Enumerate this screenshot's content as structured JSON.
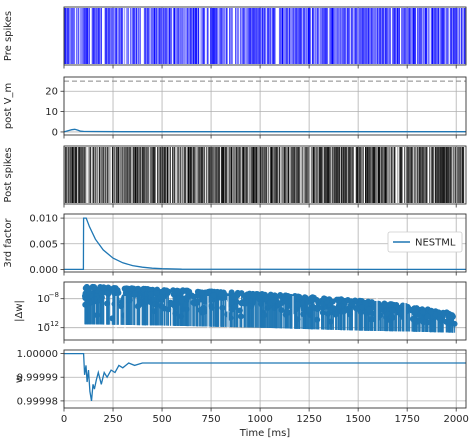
{
  "figure": {
    "xlabel": "Time [ms]",
    "xlim": [
      0,
      2050
    ],
    "xticks": [
      0,
      250,
      500,
      750,
      1000,
      1250,
      1500,
      1750,
      2000
    ],
    "xtick_labels": [
      "0",
      "250",
      "500",
      "750",
      "1000",
      "1250",
      "1500",
      "1750",
      "2000"
    ]
  },
  "chart_data": [
    {
      "type": "scatter",
      "subtype": "raster",
      "ylabel": "Pre spikes",
      "color": "#0000ff",
      "x_range": [
        0,
        2050
      ],
      "approx_spike_count": 900,
      "grid": true
    },
    {
      "type": "line",
      "ylabel": "post V_m",
      "yticks": [
        0,
        10,
        20
      ],
      "ylim": [
        -1.5,
        27
      ],
      "grid": true,
      "color": "#1f77b4",
      "threshold_line": {
        "y": 25,
        "style": "dashed",
        "color": "#888888"
      },
      "series": [
        {
          "x": [
            0,
            20,
            40,
            55,
            70,
            85,
            100,
            150,
            300,
            2050
          ],
          "y": [
            0,
            0.6,
            1.1,
            1.3,
            0.9,
            0.35,
            0.25,
            0.2,
            0.1,
            0.1
          ]
        }
      ]
    },
    {
      "type": "scatter",
      "subtype": "raster",
      "ylabel": "Post spikes",
      "color": "#000000",
      "x_range": [
        5,
        2040
      ],
      "approx_spike_count": 750,
      "grid": true
    },
    {
      "type": "line",
      "ylabel": "3rd factor",
      "yticks": [
        0.0,
        0.005,
        0.01
      ],
      "ytick_labels": [
        "0.000",
        "0.005",
        "0.010"
      ],
      "ylim": [
        -0.0005,
        0.0108
      ],
      "grid": true,
      "color": "#1f77b4",
      "legend": {
        "position": "right",
        "entries": [
          "NESTML"
        ]
      },
      "series": [
        {
          "x": [
            0,
            99,
            100,
            113,
            130,
            160,
            200,
            250,
            300,
            350,
            400,
            450,
            500,
            600,
            2050
          ],
          "y": [
            0,
            0,
            0.01,
            0.01,
            0.0083,
            0.0059,
            0.0038,
            0.0022,
            0.0013,
            0.00075,
            0.00043,
            0.00025,
            0.00014,
            5e-05,
            0
          ]
        }
      ]
    },
    {
      "type": "scatter",
      "ylabel": "|Δw|",
      "yscale": "log",
      "ytick_labels": [
        "10^−8",
        "10^−12"
      ],
      "yticks": [
        1e-08,
        1e-12
      ],
      "ylim": [
        2e-14,
        2e-06
      ],
      "grid": true,
      "color": "#1f77b4",
      "envelope": {
        "x": [
          100,
          500,
          1000,
          1500,
          1750,
          2000
        ],
        "upper": [
          5e-07,
          2e-07,
          5e-08,
          6e-09,
          1e-09,
          8e-11
        ],
        "lower": [
          3e-12,
          2e-12,
          1e-12,
          4e-13,
          3e-13,
          2e-13
        ]
      }
    },
    {
      "type": "line",
      "ylabel": "w",
      "yticks": [
        1.0,
        0.99999,
        0.99998
      ],
      "ytick_labels": [
        "1.00000",
        "0.99999",
        "0.99998"
      ],
      "ylim": [
        0.999977,
        1.0000015
      ],
      "grid": true,
      "color": "#1f77b4",
      "series": [
        {
          "x": [
            0,
            100,
            105,
            112,
            118,
            125,
            132,
            140,
            148,
            155,
            165,
            175,
            190,
            205,
            220,
            240,
            260,
            280,
            300,
            330,
            360,
            400,
            450,
            500,
            2050
          ],
          "y": [
            1.0,
            1.0,
            0.999991,
            0.999995,
            0.999988,
            0.999993,
            0.999984,
            0.99998,
            0.999987,
            0.999985,
            0.999989,
            0.999992,
            0.999987,
            0.999992,
            0.99999,
            0.999993,
            0.999992,
            0.999995,
            0.999994,
            0.999996,
            0.999995,
            0.999996,
            0.999996,
            0.999996,
            0.999996
          ]
        }
      ]
    }
  ]
}
